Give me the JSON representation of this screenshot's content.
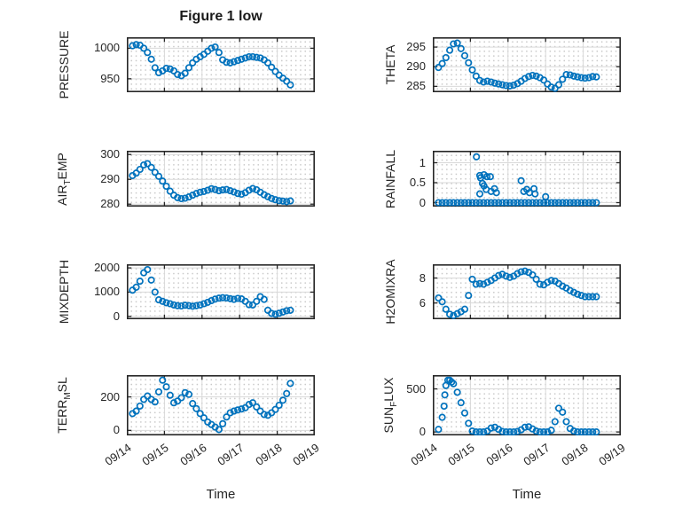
{
  "figure": {
    "title": "Figure 1 low",
    "xlabel": "Time",
    "marker_color": "#0072BD",
    "axis_color": "#262626",
    "major_grid_color": "#d9d9d9",
    "background": "#ffffff",
    "grid": {
      "major": "on",
      "minor": "dotted"
    },
    "x_tick_labels": [
      "09/14",
      "09/15",
      "09/16",
      "09/17",
      "09/18",
      "09/19"
    ]
  },
  "chart_data": [
    {
      "name": "pressure",
      "type": "scatter",
      "row": 0,
      "col": 0,
      "ylabel": "PRESSURE",
      "ylabel_parts": [
        {
          "text": "PRESSURE",
          "sub": false
        }
      ],
      "xlim": [
        0,
        5
      ],
      "xticks": [
        0,
        1,
        2,
        3,
        4,
        5
      ],
      "ylim": [
        928,
        1018
      ],
      "yticks": [
        950,
        1000
      ],
      "ytick_labels": [
        "950",
        "1000"
      ],
      "x": [
        0.15,
        0.25,
        0.35,
        0.45,
        0.55,
        0.65,
        0.75,
        0.85,
        0.95,
        1.05,
        1.15,
        1.25,
        1.35,
        1.45,
        1.55,
        1.65,
        1.75,
        1.85,
        1.95,
        2.05,
        2.15,
        2.25,
        2.35,
        2.45,
        2.55,
        2.65,
        2.75,
        2.85,
        2.95,
        3.05,
        3.15,
        3.25,
        3.35,
        3.45,
        3.55,
        3.65,
        3.75,
        3.85,
        3.95,
        4.05,
        4.15,
        4.25,
        4.35
      ],
      "y": [
        1004,
        1006,
        1005,
        1000,
        993,
        982,
        968,
        960,
        963,
        967,
        966,
        963,
        957,
        955,
        959,
        968,
        976,
        982,
        986,
        990,
        995,
        1000,
        1002,
        993,
        981,
        977,
        976,
        978,
        980,
        982,
        984,
        986,
        986,
        985,
        984,
        981,
        976,
        969,
        962,
        956,
        951,
        946,
        940
      ]
    },
    {
      "name": "theta",
      "type": "scatter",
      "row": 0,
      "col": 1,
      "ylabel": "THETA",
      "ylabel_parts": [
        {
          "text": "THETA",
          "sub": false
        }
      ],
      "xlim": [
        0,
        5
      ],
      "xticks": [
        0,
        1,
        2,
        3,
        4,
        5
      ],
      "ylim": [
        283.5,
        297.5
      ],
      "yticks": [
        285,
        290,
        295
      ],
      "ytick_labels": [
        "285",
        "290",
        "295"
      ],
      "x": [
        0.15,
        0.25,
        0.35,
        0.45,
        0.55,
        0.65,
        0.75,
        0.85,
        0.95,
        1.05,
        1.15,
        1.25,
        1.35,
        1.45,
        1.55,
        1.65,
        1.75,
        1.85,
        1.95,
        2.05,
        2.15,
        2.25,
        2.35,
        2.45,
        2.55,
        2.65,
        2.75,
        2.85,
        2.95,
        3.05,
        3.15,
        3.25,
        3.35,
        3.45,
        3.55,
        3.65,
        3.75,
        3.85,
        3.95,
        4.05,
        4.15,
        4.25,
        4.35
      ],
      "y": [
        289.8,
        290.8,
        292.3,
        294.2,
        295.8,
        296.0,
        294.6,
        292.8,
        291.0,
        289.2,
        287.6,
        286.5,
        286.1,
        286.3,
        286.1,
        285.8,
        285.6,
        285.4,
        285.2,
        285.1,
        285.3,
        285.7,
        286.3,
        287.0,
        287.5,
        287.8,
        287.6,
        287.2,
        286.6,
        285.6,
        284.8,
        284.5,
        285.4,
        286.8,
        288.0,
        287.9,
        287.6,
        287.4,
        287.2,
        287.1,
        287.2,
        287.5,
        287.4
      ]
    },
    {
      "name": "air-temp",
      "type": "scatter",
      "row": 1,
      "col": 0,
      "ylabel": "AIR_TEMP",
      "ylabel_parts": [
        {
          "text": "AIR",
          "sub": false
        },
        {
          "text": "T",
          "sub": true
        },
        {
          "text": "EMP",
          "sub": false
        }
      ],
      "xlim": [
        0,
        5
      ],
      "xticks": [
        0,
        1,
        2,
        3,
        4,
        5
      ],
      "ylim": [
        279,
        301.5
      ],
      "yticks": [
        280,
        290,
        300
      ],
      "ytick_labels": [
        "280",
        "290",
        "300"
      ],
      "x": [
        0.15,
        0.25,
        0.35,
        0.45,
        0.55,
        0.65,
        0.75,
        0.85,
        0.95,
        1.05,
        1.15,
        1.25,
        1.35,
        1.45,
        1.55,
        1.65,
        1.75,
        1.85,
        1.95,
        2.05,
        2.15,
        2.25,
        2.35,
        2.45,
        2.55,
        2.65,
        2.75,
        2.85,
        2.95,
        3.05,
        3.15,
        3.25,
        3.35,
        3.45,
        3.55,
        3.65,
        3.75,
        3.85,
        3.95,
        4.05,
        4.15,
        4.25,
        4.35
      ],
      "y": [
        291.5,
        292.5,
        294.0,
        295.8,
        296.3,
        294.8,
        292.8,
        291.2,
        289.3,
        287.2,
        285.2,
        283.6,
        282.6,
        282.2,
        282.4,
        282.9,
        283.6,
        284.3,
        284.8,
        285.1,
        285.6,
        286.2,
        285.9,
        285.4,
        285.7,
        285.9,
        285.4,
        284.9,
        284.3,
        284.0,
        284.6,
        285.6,
        286.3,
        285.8,
        284.8,
        283.8,
        283.0,
        282.3,
        281.8,
        281.4,
        281.2,
        281.0,
        281.3
      ]
    },
    {
      "name": "rainfall",
      "type": "scatter",
      "row": 1,
      "col": 1,
      "ylabel": "RAINFALL",
      "ylabel_parts": [
        {
          "text": "RAINFALL",
          "sub": false
        }
      ],
      "xlim": [
        0,
        5
      ],
      "xticks": [
        0,
        1,
        2,
        3,
        4,
        5
      ],
      "ylim": [
        -0.1,
        1.3
      ],
      "yticks": [
        0,
        0.5,
        1
      ],
      "ytick_labels": [
        "0",
        "0.5",
        "1"
      ],
      "x": [
        0.15,
        0.25,
        0.35,
        0.45,
        0.55,
        0.65,
        0.75,
        0.85,
        0.95,
        1.05,
        1.15,
        1.25,
        1.35,
        1.45,
        1.55,
        1.65,
        1.75,
        1.85,
        1.95,
        2.05,
        2.15,
        2.25,
        2.35,
        2.45,
        2.55,
        2.65,
        2.75,
        2.85,
        2.95,
        3.05,
        3.15,
        3.25,
        3.35,
        3.45,
        3.55,
        3.65,
        3.75,
        3.85,
        3.95,
        4.05,
        4.15,
        4.25,
        4.35,
        1.16,
        1.25,
        1.27,
        1.36,
        1.44,
        1.53,
        1.32,
        1.36,
        1.42,
        1.25,
        1.55,
        1.64,
        1.69,
        2.35,
        2.42,
        2.5,
        2.57,
        2.69,
        2.72,
        3.0
      ],
      "y": [
        0,
        0,
        0,
        0,
        0,
        0,
        0,
        0,
        0,
        0,
        0,
        0,
        0,
        0,
        0,
        0,
        0,
        0,
        0,
        0,
        0,
        0,
        0,
        0,
        0,
        0,
        0,
        0,
        0,
        0,
        0,
        0,
        0,
        0,
        0,
        0,
        0,
        0,
        0,
        0,
        0,
        0,
        0,
        1.15,
        0.68,
        0.62,
        0.7,
        0.65,
        0.65,
        0.48,
        0.42,
        0.33,
        0.22,
        0.28,
        0.35,
        0.25,
        0.55,
        0.28,
        0.33,
        0.25,
        0.35,
        0.22,
        0.15
      ]
    },
    {
      "name": "mixdepth",
      "type": "scatter",
      "row": 2,
      "col": 0,
      "ylabel": "MIXDEPTH",
      "ylabel_parts": [
        {
          "text": "MIXDEPTH",
          "sub": false
        }
      ],
      "xlim": [
        0,
        5
      ],
      "xticks": [
        0,
        1,
        2,
        3,
        4,
        5
      ],
      "ylim": [
        -120,
        2150
      ],
      "yticks": [
        0,
        1000,
        2000
      ],
      "ytick_labels": [
        "0",
        "1000",
        "2000"
      ],
      "x": [
        0.15,
        0.25,
        0.35,
        0.45,
        0.55,
        0.65,
        0.75,
        0.85,
        0.95,
        1.05,
        1.15,
        1.25,
        1.35,
        1.45,
        1.55,
        1.65,
        1.75,
        1.85,
        1.95,
        2.05,
        2.15,
        2.25,
        2.35,
        2.45,
        2.55,
        2.65,
        2.75,
        2.85,
        2.95,
        3.05,
        3.15,
        3.25,
        3.35,
        3.45,
        3.55,
        3.65,
        3.75,
        3.85,
        3.95,
        4.05,
        4.15,
        4.25,
        4.35
      ],
      "y": [
        1080,
        1200,
        1450,
        1800,
        1930,
        1500,
        1000,
        680,
        620,
        560,
        520,
        470,
        440,
        430,
        460,
        440,
        420,
        440,
        470,
        520,
        580,
        650,
        710,
        750,
        770,
        760,
        730,
        700,
        740,
        720,
        620,
        480,
        470,
        620,
        810,
        700,
        250,
        120,
        90,
        130,
        180,
        230,
        250
      ]
    },
    {
      "name": "h2omixra",
      "type": "scatter",
      "row": 2,
      "col": 1,
      "ylabel": "H2OMIXRA",
      "ylabel_parts": [
        {
          "text": "H2OMIXRA",
          "sub": false
        }
      ],
      "xlim": [
        0,
        5
      ],
      "xticks": [
        0,
        1,
        2,
        3,
        4,
        5
      ],
      "ylim": [
        4.7,
        9.1
      ],
      "yticks": [
        6,
        8
      ],
      "ytick_labels": [
        "6",
        "8"
      ],
      "x": [
        0.15,
        0.25,
        0.35,
        0.45,
        0.55,
        0.65,
        0.75,
        0.85,
        0.95,
        1.05,
        1.15,
        1.25,
        1.35,
        1.45,
        1.55,
        1.65,
        1.75,
        1.85,
        1.95,
        2.05,
        2.15,
        2.25,
        2.35,
        2.45,
        2.55,
        2.65,
        2.75,
        2.85,
        2.95,
        3.05,
        3.15,
        3.25,
        3.35,
        3.45,
        3.55,
        3.65,
        3.75,
        3.85,
        3.95,
        4.05,
        4.15,
        4.25,
        4.35
      ],
      "y": [
        6.4,
        6.1,
        5.5,
        5.1,
        5.0,
        5.15,
        5.3,
        5.5,
        6.6,
        7.9,
        7.5,
        7.55,
        7.5,
        7.65,
        7.8,
        8.0,
        8.2,
        8.3,
        8.15,
        8.05,
        8.15,
        8.35,
        8.5,
        8.55,
        8.45,
        8.25,
        7.9,
        7.5,
        7.45,
        7.65,
        7.8,
        7.75,
        7.55,
        7.35,
        7.2,
        7.0,
        6.85,
        6.7,
        6.6,
        6.5,
        6.5,
        6.5,
        6.5
      ]
    },
    {
      "name": "terr-msl",
      "type": "scatter",
      "row": 3,
      "col": 0,
      "ylabel": "TERR_MSL",
      "xlabel": "Time",
      "ylabel_parts": [
        {
          "text": "TERR",
          "sub": false
        },
        {
          "text": "M",
          "sub": true
        },
        {
          "text": "SL",
          "sub": false
        }
      ],
      "xlim": [
        0,
        5
      ],
      "xticks": [
        0,
        1,
        2,
        3,
        4,
        5
      ],
      "ylim": [
        -30,
        330
      ],
      "yticks": [
        0,
        200
      ],
      "ytick_labels": [
        "0",
        "200"
      ],
      "x": [
        0.15,
        0.25,
        0.35,
        0.45,
        0.55,
        0.65,
        0.75,
        0.85,
        0.95,
        1.05,
        1.15,
        1.25,
        1.35,
        1.45,
        1.55,
        1.65,
        1.75,
        1.85,
        1.95,
        2.05,
        2.15,
        2.25,
        2.35,
        2.45,
        2.55,
        2.65,
        2.75,
        2.85,
        2.95,
        3.05,
        3.15,
        3.25,
        3.35,
        3.45,
        3.55,
        3.65,
        3.75,
        3.85,
        3.95,
        4.05,
        4.15,
        4.25,
        4.35
      ],
      "y": [
        100,
        115,
        145,
        185,
        205,
        185,
        170,
        230,
        300,
        260,
        210,
        165,
        175,
        195,
        225,
        215,
        160,
        130,
        100,
        75,
        50,
        35,
        20,
        5,
        40,
        80,
        105,
        115,
        122,
        128,
        135,
        155,
        165,
        140,
        115,
        95,
        90,
        105,
        125,
        150,
        180,
        220,
        280
      ]
    },
    {
      "name": "sun-flux",
      "type": "scatter",
      "row": 3,
      "col": 1,
      "ylabel": "SUN_FLUX",
      "xlabel": "Time",
      "ylabel_parts": [
        {
          "text": "SUN",
          "sub": false
        },
        {
          "text": "F",
          "sub": true
        },
        {
          "text": "LUX",
          "sub": false
        }
      ],
      "xlim": [
        0,
        5
      ],
      "xticks": [
        0,
        1,
        2,
        3,
        4,
        5
      ],
      "ylim": [
        -40,
        660
      ],
      "yticks": [
        0,
        500
      ],
      "ytick_labels": [
        "0",
        "500"
      ],
      "x": [
        0.15,
        0.25,
        0.35,
        0.45,
        0.55,
        0.65,
        0.75,
        0.85,
        0.95,
        1.05,
        1.15,
        1.25,
        1.35,
        1.45,
        1.55,
        1.65,
        1.75,
        1.85,
        1.95,
        2.05,
        2.15,
        2.25,
        2.35,
        2.45,
        2.55,
        2.65,
        2.75,
        2.85,
        2.95,
        3.05,
        3.15,
        3.25,
        3.35,
        3.45,
        3.55,
        3.65,
        3.75,
        3.85,
        3.95,
        4.05,
        4.15,
        4.25,
        4.35,
        0.3,
        0.32,
        0.4,
        0.5
      ],
      "y": [
        30,
        170,
        540,
        600,
        560,
        460,
        340,
        220,
        100,
        10,
        0,
        0,
        0,
        10,
        45,
        55,
        30,
        5,
        0,
        0,
        0,
        5,
        25,
        55,
        60,
        35,
        10,
        0,
        0,
        0,
        20,
        120,
        275,
        230,
        120,
        40,
        10,
        0,
        0,
        0,
        0,
        0,
        0,
        300,
        430,
        600,
        580
      ]
    }
  ]
}
